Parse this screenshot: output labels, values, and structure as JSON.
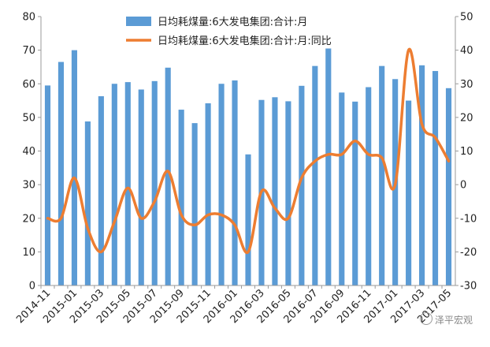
{
  "chart_data": {
    "type": "bar+line",
    "x": [
      "2014-11",
      "2014-12",
      "2015-01",
      "2015-02",
      "2015-03",
      "2015-04",
      "2015-05",
      "2015-06",
      "2015-07",
      "2015-08",
      "2015-09",
      "2015-10",
      "2015-11",
      "2015-12",
      "2016-01",
      "2016-02",
      "2016-03",
      "2016-04",
      "2016-05",
      "2016-06",
      "2016-07",
      "2016-08",
      "2016-09",
      "2016-10",
      "2016-11",
      "2016-12",
      "2017-01",
      "2017-02",
      "2017-03",
      "2017-04",
      "2017-05"
    ],
    "x_tick_labels": [
      "2014-11",
      "2015-01",
      "2015-03",
      "2015-05",
      "2015-07",
      "2015-09",
      "2015-11",
      "2016-01",
      "2016-03",
      "2016-05",
      "2016-07",
      "2016-09",
      "2016-11",
      "2017-01",
      "2017-03",
      "2017-05"
    ],
    "series": [
      {
        "name": "日均耗煤量:6大发电集团:合计:月",
        "type": "bar",
        "axis": "left",
        "color": "#5b9bd5",
        "values": [
          59.5,
          66.5,
          70,
          48.8,
          56.3,
          60,
          60.5,
          58.3,
          60.8,
          64.8,
          52.3,
          48.3,
          54.2,
          60,
          61,
          39,
          55.2,
          56,
          54.8,
          59.4,
          65.3,
          70.5,
          57.4,
          54.7,
          59,
          65.3,
          61.4,
          55,
          65.5,
          63.8,
          58.7
        ]
      },
      {
        "name": "日均耗煤量:6大发电集团:合计:月:同比",
        "type": "line",
        "axis": "right",
        "color": "#ed7d31",
        "values": [
          -10,
          -10,
          2,
          -13,
          -20,
          -11,
          -1,
          -10,
          -5,
          4,
          -9,
          -12,
          -9,
          -9,
          -12,
          -20,
          -2,
          -7,
          -10,
          2,
          7,
          9,
          9,
          13,
          9,
          8,
          0,
          40,
          18,
          14,
          7
        ]
      }
    ],
    "ylim_left": [
      0,
      80
    ],
    "yticks_left": [
      0,
      10,
      20,
      30,
      40,
      50,
      60,
      70,
      80
    ],
    "ylim_right": [
      -30,
      50
    ],
    "yticks_right": [
      -30,
      -20,
      -10,
      0,
      10,
      20,
      30,
      40,
      50
    ],
    "legend_position": "top-center",
    "grid": false
  },
  "watermark": {
    "text": "泽平宏观"
  }
}
